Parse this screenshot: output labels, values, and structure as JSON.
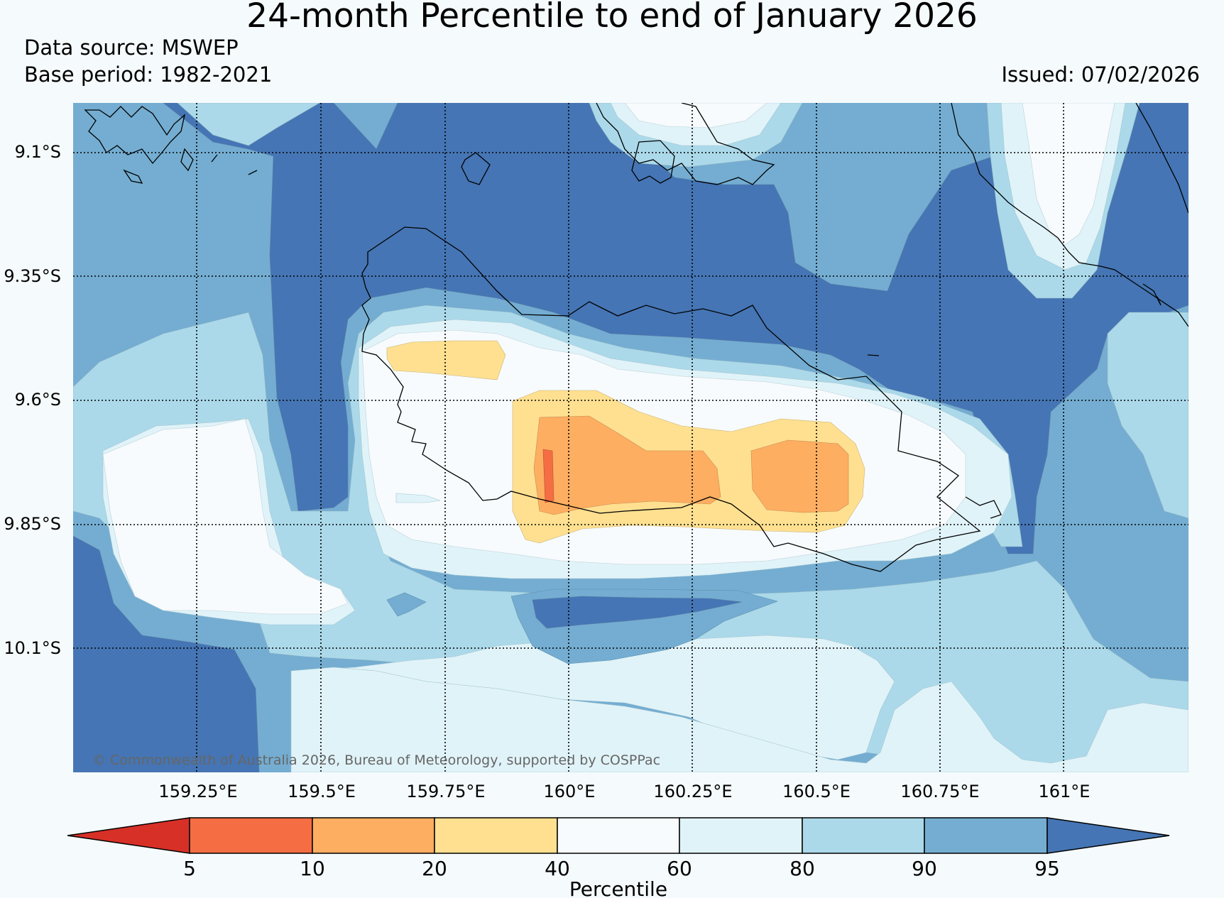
{
  "title": "24-month Percentile to end of January 2026",
  "data_source": "Data source: MSWEP",
  "base_period": "Base period: 1982-2021",
  "issued": "Issued: 07/02/2026",
  "copyright": "© Commonwealth of Australia 2026, Bureau of Meteorology, supported by COSPPac",
  "lat_labels": [
    "9.1°S",
    "9.35°S",
    "9.6°S",
    "9.85°S",
    "10.1°S"
  ],
  "lon_labels": [
    "159.25°E",
    "159.5°E",
    "159.75°E",
    "160°E",
    "160.25°E",
    "160.5°E",
    "160.75°E",
    "161°E"
  ],
  "colorbar": {
    "label": "Percentile",
    "ticks": [
      "5",
      "10",
      "20",
      "40",
      "60",
      "80",
      "90",
      "95"
    ],
    "colors": [
      "#d73027",
      "#f46d43",
      "#fdae61",
      "#fee090",
      "#f7fbfd",
      "#e0f3f8",
      "#abd9e9",
      "#74add1",
      "#4575b4"
    ]
  }
}
